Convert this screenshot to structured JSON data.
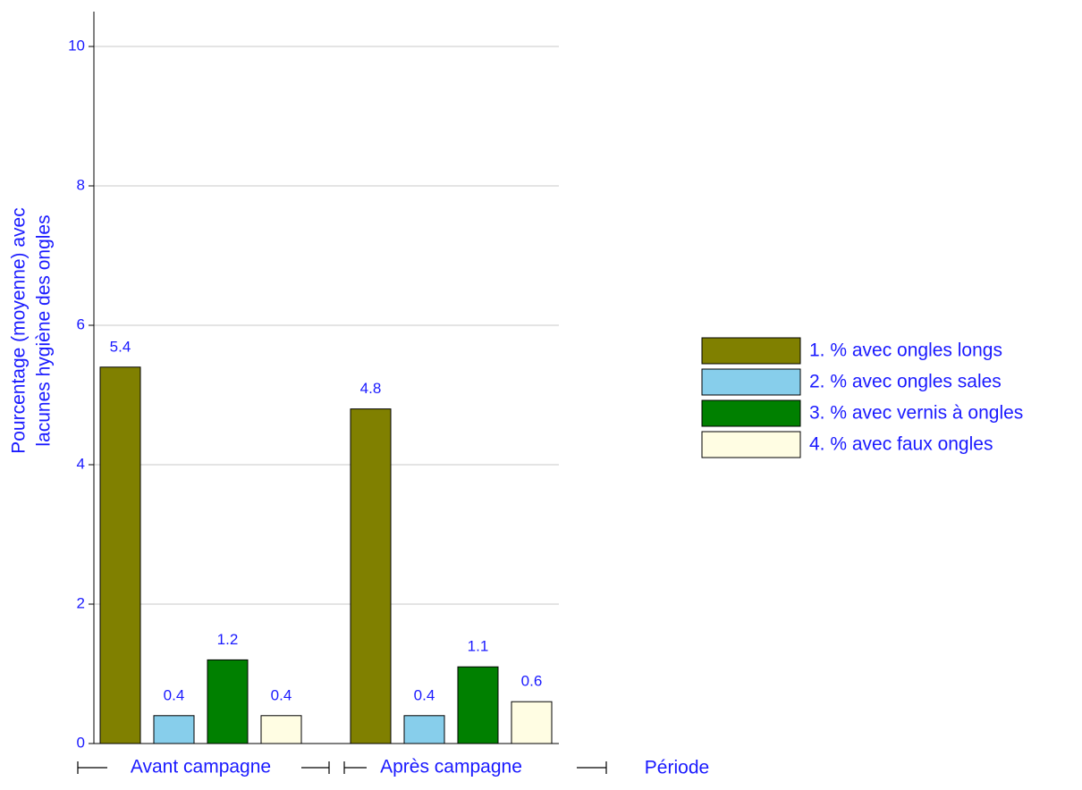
{
  "chart_data": {
    "type": "bar",
    "y_label": [
      "Pourcentage (moyenne) avec",
      "lacunes hygiène des ongles"
    ],
    "x_label": "Période",
    "categories": [
      "Avant campagne",
      "Après campagne"
    ],
    "series": [
      {
        "name": "1. % avec ongles longs",
        "color": "#808000",
        "values": [
          5.4,
          4.8
        ]
      },
      {
        "name": "2. % avec ongles sales",
        "color": "#87ceeb",
        "values": [
          0.4,
          0.4
        ]
      },
      {
        "name": "3. % avec vernis à ongles",
        "color": "#008000",
        "values": [
          1.2,
          1.1
        ]
      },
      {
        "name": "4. % avec faux ongles",
        "color": "#fffde3",
        "values": [
          0.4,
          0.6
        ]
      }
    ],
    "ylim": [
      0,
      10.5
    ],
    "yticks": [
      0,
      2,
      4,
      6,
      8,
      10
    ],
    "grid": true,
    "legend": "right"
  }
}
